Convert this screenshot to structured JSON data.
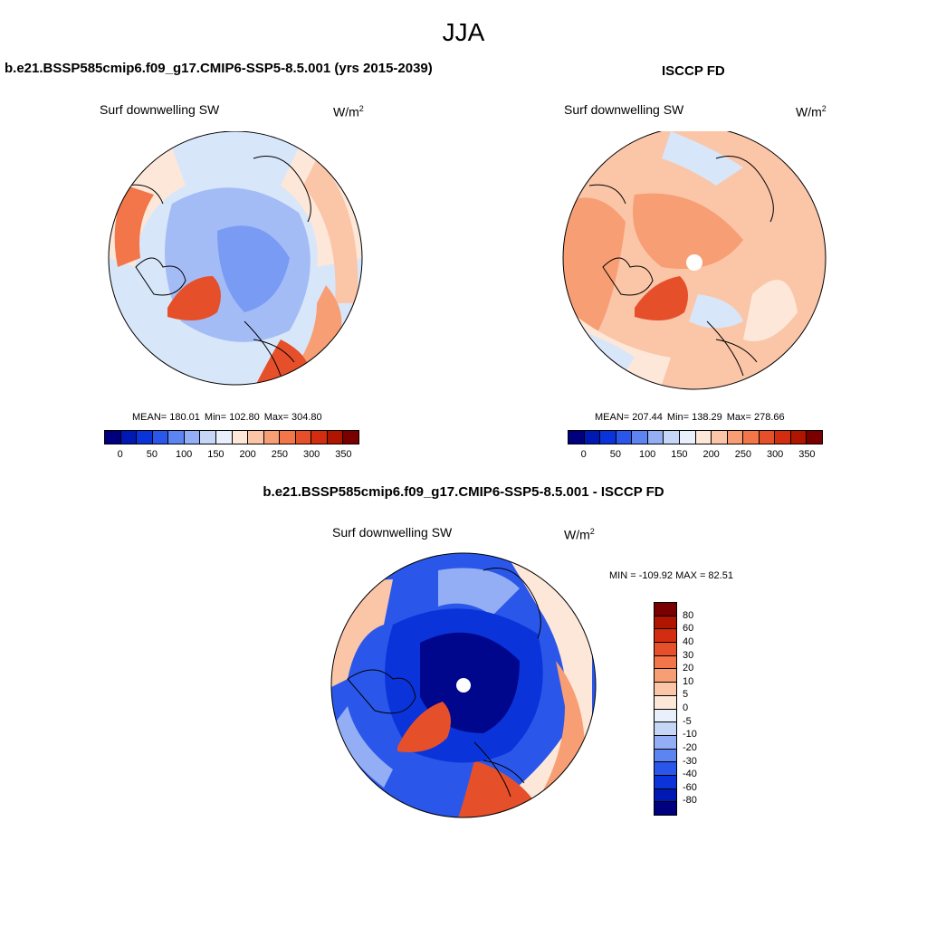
{
  "season": "JJA",
  "palette": [
    "#00007f",
    "#0019b3",
    "#0a34d9",
    "#2a57ea",
    "#5d85f2",
    "#93aef4",
    "#c6d6f6",
    "#e9f0fb",
    "#fde7d8",
    "#fbc5a7",
    "#f79e74",
    "#f2764a",
    "#e5502a",
    "#d22d10",
    "#b01500",
    "#7a0000"
  ],
  "colors": {
    "ocean_blue_light": "#d8e6fa",
    "land_red": "#e5502a",
    "pale_peach": "#fde7d8"
  },
  "panels": {
    "model": {
      "title": "b.e21.BSSP585cmip6.f09_g17.CMIP6-SSP5-8.5.001 (yrs 2015-2039)",
      "variable": "Surf downwelling SW",
      "units": "W/m",
      "units_sup": "2",
      "mean": "MEAN= 180.01",
      "min": "Min= 102.80",
      "max": "Max= 304.80"
    },
    "obs": {
      "title": "ISCCP FD",
      "variable": "Surf downwelling SW",
      "units": "W/m",
      "units_sup": "2",
      "mean": "MEAN= 207.44",
      "min": "Min= 138.29",
      "max": "Max= 278.66"
    },
    "diff": {
      "title": "b.e21.BSSP585cmip6.f09_g17.CMIP6-SSP5-8.5.001 - ISCCP FD",
      "variable": "Surf downwelling SW",
      "units": "W/m",
      "units_sup": "2",
      "minmax": "MIN = -109.92 MAX =  82.51"
    }
  },
  "colorbar_abs": {
    "labels": [
      "0",
      "50",
      "100",
      "150",
      "200",
      "250",
      "300",
      "350"
    ]
  },
  "colorbar_diff": {
    "labels": [
      "80",
      "60",
      "40",
      "30",
      "20",
      "10",
      "5",
      "0",
      "-5",
      "-10",
      "-20",
      "-30",
      "-40",
      "-60",
      "-80"
    ]
  }
}
